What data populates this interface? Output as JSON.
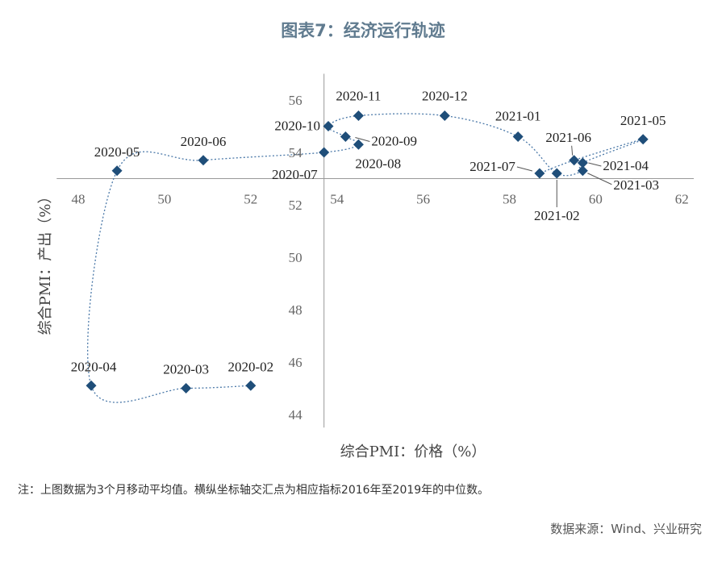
{
  "title": "图表7：经济运行轨迹",
  "chart_data": {
    "type": "scatter",
    "connected": true,
    "line_style": "dotted",
    "marker": "diamond",
    "color": "#1f4e79",
    "xlabel": "综合PMI：价格（%）",
    "ylabel": "综合PMI：产出（%）",
    "xlim": [
      47.5,
      62.5
    ],
    "ylim": [
      43.5,
      57
    ],
    "x_ticks": [
      48,
      50,
      52,
      54,
      56,
      58,
      60,
      62
    ],
    "y_ticks": [
      44,
      46,
      48,
      50,
      52,
      54,
      56
    ],
    "axis_cross": {
      "x": 53.7,
      "y": 53.0
    },
    "points": [
      {
        "label": "2020-02",
        "x": 52.0,
        "y": 45.1
      },
      {
        "label": "2020-03",
        "x": 50.5,
        "y": 45.0
      },
      {
        "label": "2020-04",
        "x": 48.3,
        "y": 45.1
      },
      {
        "label": "2020-05",
        "x": 48.9,
        "y": 53.3
      },
      {
        "label": "2020-06",
        "x": 50.9,
        "y": 53.7
      },
      {
        "label": "2020-07",
        "x": 53.7,
        "y": 54.0
      },
      {
        "label": "2020-08",
        "x": 54.5,
        "y": 54.3
      },
      {
        "label": "2020-09",
        "x": 54.2,
        "y": 54.6
      },
      {
        "label": "2020-10",
        "x": 53.8,
        "y": 55.0
      },
      {
        "label": "2020-11",
        "x": 54.5,
        "y": 55.4
      },
      {
        "label": "2020-12",
        "x": 56.5,
        "y": 55.4
      },
      {
        "label": "2021-01",
        "x": 58.2,
        "y": 54.6
      },
      {
        "label": "2021-02",
        "x": 59.1,
        "y": 53.2
      },
      {
        "label": "2021-03",
        "x": 59.7,
        "y": 53.3
      },
      {
        "label": "2021-04",
        "x": 59.7,
        "y": 53.6
      },
      {
        "label": "2021-05",
        "x": 61.1,
        "y": 54.5
      },
      {
        "label": "2021-06",
        "x": 59.5,
        "y": 53.7
      },
      {
        "label": "2021-07",
        "x": 58.7,
        "y": 53.2
      }
    ]
  },
  "note": "注：上图数据为3个月移动平均值。横纵坐标轴交汇点为相应指标2016年至2019年的中位数。",
  "source": "数据来源：Wind、兴业研究"
}
